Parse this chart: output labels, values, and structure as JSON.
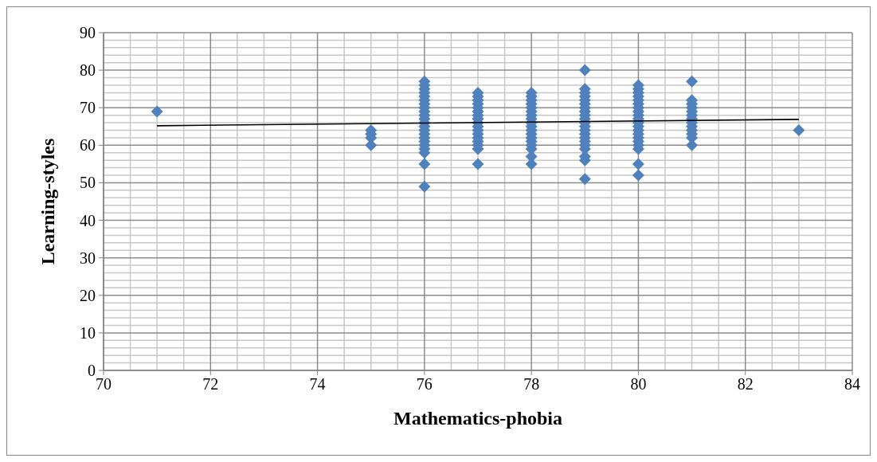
{
  "chart_data": {
    "type": "scatter",
    "xlabel": "Mathematics-phobia",
    "ylabel": "Learning-styles",
    "xlim": [
      70,
      84
    ],
    "xticks": [
      70,
      72,
      74,
      76,
      78,
      80,
      82,
      84
    ],
    "ylim": [
      0,
      90
    ],
    "yticks": [
      0,
      10,
      20,
      30,
      40,
      50,
      60,
      70,
      80,
      90
    ],
    "grid": true,
    "marker": "diamond",
    "series": [
      {
        "color": "#4f81bd",
        "x": [
          71,
          75,
          75,
          75,
          75,
          76,
          76,
          76,
          76,
          76,
          76,
          76,
          76,
          76,
          76,
          76,
          76,
          76,
          76,
          76,
          76,
          76,
          76,
          76,
          76,
          76,
          76,
          77,
          77,
          77,
          77,
          77,
          77,
          77,
          77,
          77,
          77,
          77,
          77,
          77,
          77,
          77,
          77,
          77,
          78,
          78,
          78,
          78,
          78,
          78,
          78,
          78,
          78,
          78,
          78,
          78,
          78,
          78,
          78,
          78,
          78,
          78,
          79,
          79,
          79,
          79,
          79,
          79,
          79,
          79,
          79,
          79,
          79,
          79,
          79,
          79,
          79,
          79,
          79,
          79,
          79,
          79,
          79,
          80,
          80,
          80,
          80,
          80,
          80,
          80,
          80,
          80,
          80,
          80,
          80,
          80,
          80,
          80,
          80,
          80,
          80,
          80,
          80,
          81,
          81,
          81,
          81,
          81,
          81,
          81,
          81,
          81,
          81,
          81,
          81,
          81,
          83
        ],
        "values": [
          69,
          60,
          62,
          63,
          64,
          49,
          55,
          58,
          59,
          60,
          61,
          62,
          63,
          64,
          65,
          66,
          67,
          68,
          69,
          70,
          71,
          72,
          73,
          74,
          75,
          76,
          77,
          55,
          59,
          60,
          61,
          62,
          63,
          64,
          65,
          66,
          67,
          68,
          69,
          70,
          71,
          72,
          73,
          74,
          55,
          57,
          59,
          60,
          61,
          62,
          63,
          64,
          65,
          66,
          67,
          68,
          69,
          70,
          71,
          72,
          73,
          74,
          51,
          56,
          57,
          59,
          60,
          61,
          62,
          63,
          64,
          65,
          66,
          67,
          68,
          69,
          70,
          71,
          72,
          73,
          74,
          75,
          80,
          52,
          55,
          59,
          60,
          61,
          62,
          63,
          64,
          65,
          66,
          67,
          68,
          69,
          70,
          71,
          72,
          73,
          74,
          75,
          76,
          60,
          62,
          63,
          64,
          65,
          66,
          67,
          68,
          69,
          70,
          71,
          72,
          77,
          64
        ]
      },
      {
        "type": "line",
        "color": "#000000",
        "marker": "none",
        "x": [
          71,
          83
        ],
        "values": [
          65.2,
          66.9
        ]
      }
    ]
  }
}
